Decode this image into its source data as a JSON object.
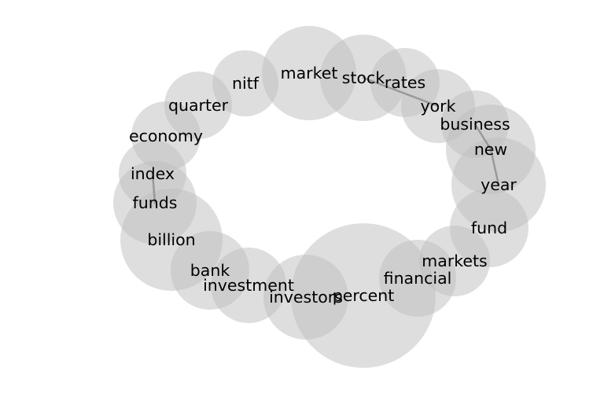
{
  "diagram": {
    "type": "word-bubble-ring",
    "fill_color": "#bdbdbd",
    "edge_color": "#8c8c8c",
    "text_color": "#000000",
    "words": [
      "market",
      "stock",
      "rates",
      "nitf",
      "quarter",
      "york",
      "business",
      "economy",
      "new",
      "index",
      "year",
      "funds",
      "fund",
      "billion",
      "markets",
      "bank",
      "financial",
      "investment",
      "investors",
      "percent"
    ],
    "edges": [
      [
        "stock",
        "york"
      ],
      [
        "business",
        "new"
      ],
      [
        "new",
        "year"
      ],
      [
        "index",
        "funds"
      ]
    ]
  }
}
